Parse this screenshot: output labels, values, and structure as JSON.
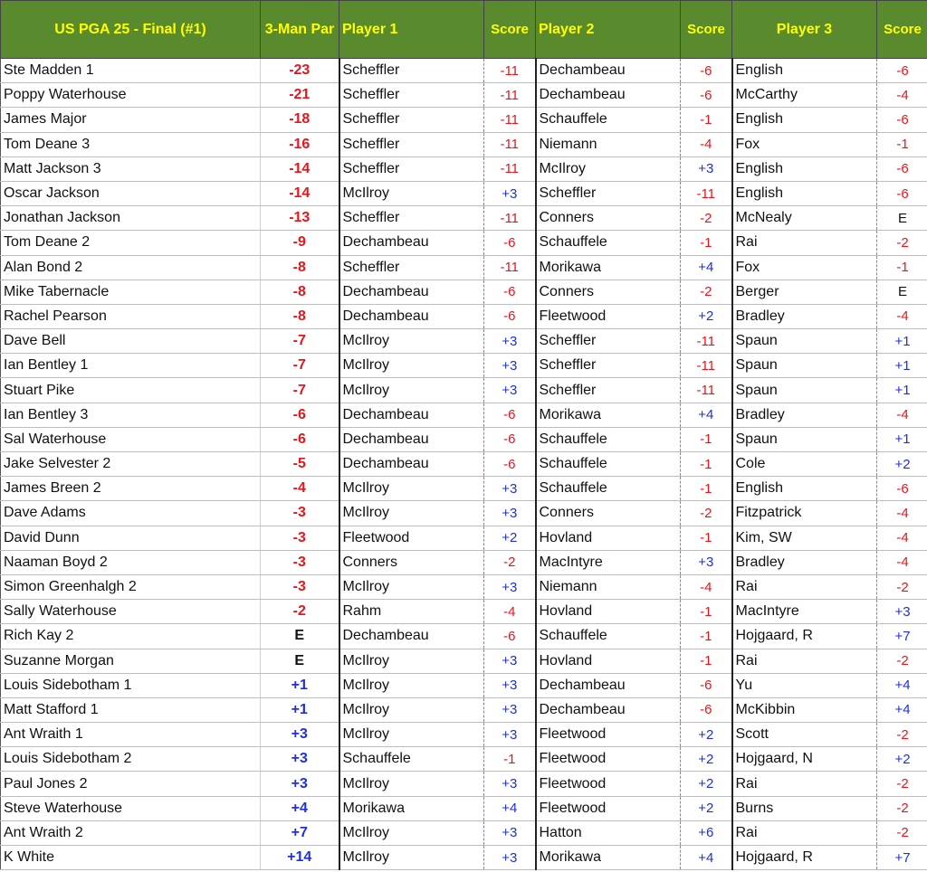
{
  "header": {
    "title": "US PGA 25 - Final (#1)",
    "par": "3-Man Par",
    "player1": "Player 1",
    "score1": "Score",
    "player2": "Player 2",
    "score2": "Score",
    "player3": "Player 3",
    "score3": "Score"
  },
  "colors": {
    "header_bg": "#5a8a2e",
    "header_text": "#ffff00",
    "negative": "#e8141b",
    "positive": "#1f2fe0"
  },
  "rows": [
    [
      "Ste Madden 1",
      "-23",
      "Scheffler",
      "-11",
      "Dechambeau",
      "-6",
      "English",
      "-6"
    ],
    [
      "Poppy Waterhouse",
      "-21",
      "Scheffler",
      "-11",
      "Dechambeau",
      "-6",
      "McCarthy",
      "-4"
    ],
    [
      "James Major",
      "-18",
      "Scheffler",
      "-11",
      "Schauffele",
      "-1",
      "English",
      "-6"
    ],
    [
      "Tom Deane 3",
      "-16",
      "Scheffler",
      "-11",
      "Niemann",
      "-4",
      "Fox",
      "-1"
    ],
    [
      "Matt Jackson 3",
      "-14",
      "Scheffler",
      "-11",
      "McIlroy",
      "+3",
      "English",
      "-6"
    ],
    [
      "Oscar Jackson",
      "-14",
      "McIlroy",
      "+3",
      "Scheffler",
      "-11",
      "English",
      "-6"
    ],
    [
      "Jonathan Jackson",
      "-13",
      "Scheffler",
      "-11",
      "Conners",
      "-2",
      "McNealy",
      "E"
    ],
    [
      "Tom Deane 2",
      "-9",
      "Dechambeau",
      "-6",
      "Schauffele",
      "-1",
      "Rai",
      "-2"
    ],
    [
      "Alan Bond 2",
      "-8",
      "Scheffler",
      "-11",
      "Morikawa",
      "+4",
      "Fox",
      "-1"
    ],
    [
      "Mike Tabernacle",
      "-8",
      "Dechambeau",
      "-6",
      "Conners",
      "-2",
      "Berger",
      "E"
    ],
    [
      "Rachel Pearson",
      "-8",
      "Dechambeau",
      "-6",
      "Fleetwood",
      "+2",
      "Bradley",
      "-4"
    ],
    [
      "Dave Bell",
      "-7",
      "McIlroy",
      "+3",
      "Scheffler",
      "-11",
      "Spaun",
      "+1"
    ],
    [
      "Ian Bentley 1",
      "-7",
      "McIlroy",
      "+3",
      "Scheffler",
      "-11",
      "Spaun",
      "+1"
    ],
    [
      "Stuart Pike",
      "-7",
      "McIlroy",
      "+3",
      "Scheffler",
      "-11",
      "Spaun",
      "+1"
    ],
    [
      "Ian Bentley 3",
      "-6",
      "Dechambeau",
      "-6",
      "Morikawa",
      "+4",
      "Bradley",
      "-4"
    ],
    [
      "Sal Waterhouse",
      "-6",
      "Dechambeau",
      "-6",
      "Schauffele",
      "-1",
      "Spaun",
      "+1"
    ],
    [
      "Jake Selvester 2",
      "-5",
      "Dechambeau",
      "-6",
      "Schauffele",
      "-1",
      "Cole",
      "+2"
    ],
    [
      "James Breen 2",
      "-4",
      "McIlroy",
      "+3",
      "Schauffele",
      "-1",
      "English",
      "-6"
    ],
    [
      "Dave Adams",
      "-3",
      "McIlroy",
      "+3",
      "Conners",
      "-2",
      "Fitzpatrick",
      "-4"
    ],
    [
      "David Dunn",
      "-3",
      "Fleetwood",
      "+2",
      "Hovland",
      "-1",
      "Kim, SW",
      "-4"
    ],
    [
      "Naaman Boyd 2",
      "-3",
      "Conners",
      "-2",
      "MacIntyre",
      "+3",
      "Bradley",
      "-4"
    ],
    [
      "Simon Greenhalgh 2",
      "-3",
      "McIlroy",
      "+3",
      "Niemann",
      "-4",
      "Rai",
      "-2"
    ],
    [
      "Sally Waterhouse",
      "-2",
      "Rahm",
      "-4",
      "Hovland",
      "-1",
      "MacIntyre",
      "+3"
    ],
    [
      "Rich Kay 2",
      "E",
      "Dechambeau",
      "-6",
      "Schauffele",
      "-1",
      "Hojgaard, R",
      "+7"
    ],
    [
      "Suzanne Morgan",
      "E",
      "McIlroy",
      "+3",
      "Hovland",
      "-1",
      "Rai",
      "-2"
    ],
    [
      "Louis Sidebotham 1",
      "+1",
      "McIlroy",
      "+3",
      "Dechambeau",
      "-6",
      "Yu",
      "+4"
    ],
    [
      "Matt Stafford 1",
      "+1",
      "McIlroy",
      "+3",
      "Dechambeau",
      "-6",
      "McKibbin",
      "+4"
    ],
    [
      "Ant Wraith 1",
      "+3",
      "McIlroy",
      "+3",
      "Fleetwood",
      "+2",
      "Scott",
      "-2"
    ],
    [
      "Louis Sidebotham 2",
      "+3",
      "Schauffele",
      "-1",
      "Fleetwood",
      "+2",
      "Hojgaard, N",
      "+2"
    ],
    [
      "Paul Jones 2",
      "+3",
      "McIlroy",
      "+3",
      "Fleetwood",
      "+2",
      "Rai",
      "-2"
    ],
    [
      "Steve Waterhouse",
      "+4",
      "Morikawa",
      "+4",
      "Fleetwood",
      "+2",
      "Burns",
      "-2"
    ],
    [
      "Ant Wraith 2",
      "+7",
      "McIlroy",
      "+3",
      "Hatton",
      "+6",
      "Rai",
      "-2"
    ],
    [
      "K White",
      "+14",
      "McIlroy",
      "+3",
      "Morikawa",
      "+4",
      "Hojgaard, R",
      "+7"
    ]
  ]
}
